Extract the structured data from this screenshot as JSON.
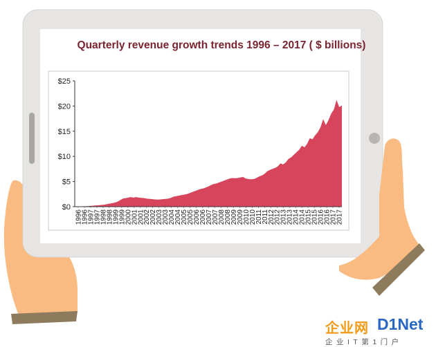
{
  "chart_data": {
    "type": "area",
    "title": "Quarterly revenue growth trends 1996 – 2017 ( $ billions)",
    "xlabel": "",
    "ylabel": "",
    "ylim": [
      0,
      25
    ],
    "y_ticks": [
      "$0",
      "$5",
      "$10",
      "$15",
      "$20",
      "$25"
    ],
    "x_tick_labels": [
      "1996",
      "1996",
      "1997",
      "1997",
      "1998",
      "1998",
      "1999",
      "1999",
      "2000",
      "2001",
      "2001",
      "2002",
      "2002",
      "2003",
      "2003",
      "2004",
      "2004",
      "2005",
      "2005",
      "2006",
      "2006",
      "2007",
      "2007",
      "2008",
      "2008",
      "2009",
      "2009",
      "2010",
      "2010",
      "2011",
      "2011",
      "2012",
      "2012",
      "2013",
      "2013",
      "2014",
      "2014",
      "2015",
      "2015",
      "2016",
      "2016",
      "2017",
      "2017"
    ],
    "grid": false,
    "fill_color": "#d6455c",
    "series": [
      {
        "values": [
          0.0,
          0.02,
          0.03,
          0.05,
          0.08,
          0.1,
          0.15,
          0.2,
          0.25,
          0.3,
          0.35,
          0.4,
          0.5,
          0.6,
          0.7,
          0.8,
          1.0,
          1.3,
          1.6,
          1.7,
          1.8,
          1.9,
          1.8,
          1.9,
          1.8,
          1.75,
          1.7,
          1.6,
          1.55,
          1.5,
          1.45,
          1.4,
          1.45,
          1.5,
          1.55,
          1.6,
          1.75,
          2.0,
          2.1,
          2.2,
          2.3,
          2.4,
          2.5,
          2.7,
          2.9,
          3.1,
          3.3,
          3.5,
          3.6,
          3.8,
          4.0,
          4.3,
          4.5,
          4.6,
          4.8,
          5.0,
          5.2,
          5.4,
          5.6,
          5.7,
          5.65,
          5.7,
          5.8,
          5.9,
          5.6,
          5.5,
          5.45,
          5.5,
          5.7,
          6.0,
          6.2,
          6.5,
          7.0,
          7.3,
          7.5,
          7.7,
          8.0,
          8.6,
          8.4,
          8.8,
          9.5,
          9.8,
          10.3,
          10.8,
          11.3,
          12.1,
          11.8,
          12.5,
          13.6,
          13.4,
          14.2,
          14.8,
          15.8,
          17.4,
          16.2,
          17.2,
          18.5,
          19.3,
          21.2,
          19.8,
          20.1
        ]
      }
    ]
  }
}
